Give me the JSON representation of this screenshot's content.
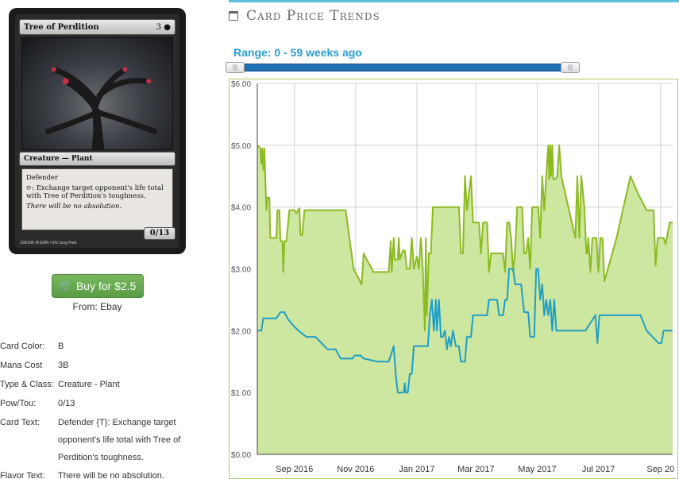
{
  "card": {
    "name": "Tree of Perdition",
    "cost_text": "3",
    "type_line": "Creature — Plant",
    "rules_text_1": "Defender",
    "rules_text_2": ": Exchange target opponent's life total with Tree of Perdition's toughness.",
    "flavor": "There will be no absolution.",
    "pt": "0/13",
    "footer": "109/205 M EMN • EN Jung Park"
  },
  "buy": {
    "label": "Buy for $2.5",
    "from_label": "From: Ebay"
  },
  "details": [
    {
      "label": "Card Color:",
      "value": "B"
    },
    {
      "label": "Mana Cost",
      "value": "3B"
    },
    {
      "label": "Type & Class:",
      "value": "Creature - Plant"
    },
    {
      "label": "Pow/Tou:",
      "value": "0/13"
    },
    {
      "label": "Card Text:",
      "value": "Defender {T}: Exchange target opponent's life total with Tree of Perdition's toughness."
    },
    {
      "label": "Flavor Text:",
      "value": "There will be no absolution."
    }
  ],
  "trends": {
    "title": "Card Price Trends",
    "range_label": "Range: 0 - 59 weeks ago"
  },
  "colors": {
    "accent_blue": "#2a9fd6",
    "green_fill": "#cde6a0",
    "green_line": "#8cba22",
    "blue_line": "#1f9fc7",
    "buy_green": "#5cb85c"
  },
  "chart_data": {
    "type": "line",
    "xlabel": "",
    "ylabel": "",
    "y_ticks": [
      "$0.00",
      "$1.00",
      "$2.00",
      "$3.00",
      "$4.00",
      "$5.00",
      "$6.00"
    ],
    "ylim": [
      0,
      6
    ],
    "x_ticks": [
      {
        "label": "Sep 2016",
        "date": "2016-09-01"
      },
      {
        "label": "Nov 2016",
        "date": "2016-11-01"
      },
      {
        "label": "Jan 2017",
        "date": "2017-01-01"
      },
      {
        "label": "Mar 2017",
        "date": "2017-03-01"
      },
      {
        "label": "May 2017",
        "date": "2017-05-01"
      },
      {
        "label": "Jul 2017",
        "date": "2017-07-01"
      },
      {
        "label": "Sep 20",
        "date": "2017-09-01"
      }
    ],
    "xlim": [
      "2016-07-26",
      "2017-09-13"
    ],
    "grid": true,
    "series": [
      {
        "style": "area",
        "points": [
          [
            "2016-07-26",
            5.0
          ],
          [
            "2016-07-29",
            4.95
          ],
          [
            "2016-07-30",
            4.7
          ],
          [
            "2016-07-31",
            4.95
          ],
          [
            "2016-08-01",
            4.6
          ],
          [
            "2016-08-02",
            4.95
          ],
          [
            "2016-08-04",
            3.95
          ],
          [
            "2016-08-05",
            4.15
          ],
          [
            "2016-08-07",
            4.15
          ],
          [
            "2016-08-08",
            3.5
          ],
          [
            "2016-08-14",
            3.5
          ],
          [
            "2016-08-15",
            3.95
          ],
          [
            "2016-08-17",
            3.95
          ],
          [
            "2016-08-18",
            3.45
          ],
          [
            "2016-08-20",
            3.45
          ],
          [
            "2016-08-21",
            2.95
          ],
          [
            "2016-08-22",
            3.45
          ],
          [
            "2016-08-24",
            3.45
          ],
          [
            "2016-08-27",
            3.95
          ],
          [
            "2016-09-01",
            3.95
          ],
          [
            "2016-09-03",
            3.9
          ],
          [
            "2016-09-06",
            3.98
          ],
          [
            "2016-09-07",
            3.55
          ],
          [
            "2016-09-09",
            3.55
          ],
          [
            "2016-09-11",
            3.95
          ],
          [
            "2016-09-30",
            3.95
          ],
          [
            "2016-10-03",
            3.95
          ],
          [
            "2016-10-22",
            3.95
          ],
          [
            "2016-10-30",
            3.0
          ],
          [
            "2016-11-07",
            2.75
          ],
          [
            "2016-11-09",
            3.25
          ],
          [
            "2016-11-12",
            3.15
          ],
          [
            "2016-11-19",
            2.95
          ],
          [
            "2016-12-04",
            2.95
          ],
          [
            "2016-12-06",
            3.45
          ],
          [
            "2016-12-07",
            2.95
          ],
          [
            "2016-12-09",
            3.5
          ],
          [
            "2016-12-10",
            3.15
          ],
          [
            "2016-12-13",
            3.15
          ],
          [
            "2016-12-14",
            3.5
          ],
          [
            "2016-12-15",
            3.15
          ],
          [
            "2016-12-18",
            3.3
          ],
          [
            "2016-12-20",
            3.3
          ],
          [
            "2016-12-22",
            3.0
          ],
          [
            "2016-12-25",
            3.0
          ],
          [
            "2016-12-27",
            3.5
          ],
          [
            "2016-12-29",
            3.0
          ],
          [
            "2017-01-01",
            3.2
          ],
          [
            "2017-01-03",
            3.0
          ],
          [
            "2017-01-05",
            3.5
          ],
          [
            "2017-01-07",
            3.0
          ],
          [
            "2017-01-09",
            2.0
          ],
          [
            "2017-01-10",
            3.5
          ],
          [
            "2017-01-11",
            2.25
          ],
          [
            "2017-01-13",
            3.25
          ],
          [
            "2017-01-15",
            3.25
          ],
          [
            "2017-01-17",
            4.0
          ],
          [
            "2017-01-27",
            4.0
          ],
          [
            "2017-01-31",
            4.0
          ],
          [
            "2017-02-12",
            4.0
          ],
          [
            "2017-02-14",
            3.25
          ],
          [
            "2017-02-16",
            3.25
          ],
          [
            "2017-02-18",
            4.5
          ],
          [
            "2017-02-20",
            3.95
          ],
          [
            "2017-02-24",
            4.5
          ],
          [
            "2017-02-26",
            3.75
          ],
          [
            "2017-03-04",
            3.75
          ],
          [
            "2017-03-06",
            3.25
          ],
          [
            "2017-03-08",
            3.75
          ],
          [
            "2017-03-12",
            3.75
          ],
          [
            "2017-03-14",
            2.95
          ],
          [
            "2017-03-16",
            3.25
          ],
          [
            "2017-03-28",
            3.25
          ],
          [
            "2017-03-30",
            2.95
          ],
          [
            "2017-04-01",
            3.75
          ],
          [
            "2017-04-03",
            3.75
          ],
          [
            "2017-04-05",
            3.5
          ],
          [
            "2017-04-07",
            2.95
          ],
          [
            "2017-04-09",
            3.3
          ],
          [
            "2017-04-11",
            4.0
          ],
          [
            "2017-04-16",
            4.0
          ],
          [
            "2017-04-18",
            3.25
          ],
          [
            "2017-04-20",
            3.25
          ],
          [
            "2017-04-22",
            3.5
          ],
          [
            "2017-04-24",
            3.0
          ],
          [
            "2017-04-26",
            4.0
          ],
          [
            "2017-05-02",
            4.0
          ],
          [
            "2017-05-04",
            3.5
          ],
          [
            "2017-05-06",
            4.5
          ],
          [
            "2017-05-08",
            3.95
          ],
          [
            "2017-05-10",
            4.5
          ],
          [
            "2017-05-12",
            5.0
          ],
          [
            "2017-05-13",
            4.45
          ],
          [
            "2017-05-14",
            5.0
          ],
          [
            "2017-05-15",
            4.5
          ],
          [
            "2017-05-16",
            5.0
          ],
          [
            "2017-05-17",
            4.45
          ],
          [
            "2017-05-19",
            4.45
          ],
          [
            "2017-05-21",
            4.5
          ],
          [
            "2017-05-23",
            5.0
          ],
          [
            "2017-05-25",
            4.5
          ],
          [
            "2017-06-08",
            3.5
          ],
          [
            "2017-06-10",
            4.5
          ],
          [
            "2017-06-12",
            3.5
          ],
          [
            "2017-06-14",
            4.5
          ],
          [
            "2017-06-17",
            4.0
          ],
          [
            "2017-06-19",
            3.25
          ],
          [
            "2017-06-20",
            3.25
          ],
          [
            "2017-06-21",
            3.5
          ],
          [
            "2017-06-23",
            2.95
          ],
          [
            "2017-06-25",
            3.5
          ],
          [
            "2017-06-29",
            3.5
          ],
          [
            "2017-07-01",
            2.95
          ],
          [
            "2017-07-03",
            3.5
          ],
          [
            "2017-07-05",
            3.5
          ],
          [
            "2017-07-07",
            2.8
          ],
          [
            "2017-07-19",
            3.5
          ],
          [
            "2017-08-02",
            4.5
          ],
          [
            "2017-08-10",
            4.2
          ],
          [
            "2017-08-18",
            3.95
          ],
          [
            "2017-08-25",
            3.95
          ],
          [
            "2017-08-27",
            3.05
          ],
          [
            "2017-08-29",
            3.5
          ],
          [
            "2017-09-04",
            3.5
          ],
          [
            "2017-09-06",
            3.4
          ],
          [
            "2017-09-10",
            3.75
          ],
          [
            "2017-09-13",
            3.75
          ]
        ]
      },
      {
        "style": "line",
        "points": [
          [
            "2016-07-26",
            2.0
          ],
          [
            "2016-07-30",
            2.0
          ],
          [
            "2016-08-01",
            2.2
          ],
          [
            "2016-08-14",
            2.2
          ],
          [
            "2016-08-18",
            2.3
          ],
          [
            "2016-08-22",
            2.3
          ],
          [
            "2016-08-25",
            2.2
          ],
          [
            "2016-08-30",
            2.1
          ],
          [
            "2016-09-05",
            2.0
          ],
          [
            "2016-09-13",
            1.9
          ],
          [
            "2016-09-22",
            1.9
          ],
          [
            "2016-10-04",
            1.7
          ],
          [
            "2016-10-12",
            1.7
          ],
          [
            "2016-10-17",
            1.55
          ],
          [
            "2016-10-29",
            1.55
          ],
          [
            "2016-10-31",
            1.6
          ],
          [
            "2016-11-06",
            1.6
          ],
          [
            "2016-11-09",
            1.55
          ],
          [
            "2016-11-23",
            1.5
          ],
          [
            "2016-12-04",
            1.5
          ],
          [
            "2016-12-09",
            1.75
          ],
          [
            "2016-12-11",
            1.3
          ],
          [
            "2016-12-13",
            1.0
          ],
          [
            "2016-12-19",
            1.0
          ],
          [
            "2016-12-20",
            1.15
          ],
          [
            "2016-12-21",
            1.0
          ],
          [
            "2016-12-23",
            1.0
          ],
          [
            "2016-12-25",
            1.3
          ],
          [
            "2016-12-27",
            1.3
          ],
          [
            "2016-12-29",
            1.75
          ],
          [
            "2017-01-12",
            1.75
          ],
          [
            "2017-01-14",
            2.25
          ],
          [
            "2017-01-16",
            2.5
          ],
          [
            "2017-01-18",
            2.0
          ],
          [
            "2017-01-20",
            2.5
          ],
          [
            "2017-01-21",
            2.0
          ],
          [
            "2017-01-23",
            2.5
          ],
          [
            "2017-01-25",
            1.9
          ],
          [
            "2017-01-27",
            1.9
          ],
          [
            "2017-01-29",
            2.0
          ],
          [
            "2017-01-31",
            1.7
          ],
          [
            "2017-02-02",
            1.9
          ],
          [
            "2017-02-04",
            1.75
          ],
          [
            "2017-02-06",
            2.0
          ],
          [
            "2017-02-09",
            1.75
          ],
          [
            "2017-02-12",
            1.75
          ],
          [
            "2017-02-14",
            1.5
          ],
          [
            "2017-02-18",
            1.5
          ],
          [
            "2017-02-20",
            1.9
          ],
          [
            "2017-02-24",
            1.9
          ],
          [
            "2017-02-26",
            2.25
          ],
          [
            "2017-03-12",
            2.25
          ],
          [
            "2017-03-14",
            2.5
          ],
          [
            "2017-03-22",
            2.5
          ],
          [
            "2017-03-24",
            2.25
          ],
          [
            "2017-03-28",
            2.25
          ],
          [
            "2017-03-30",
            2.5
          ],
          [
            "2017-04-01",
            2.5
          ],
          [
            "2017-04-03",
            3.0
          ],
          [
            "2017-04-07",
            3.0
          ],
          [
            "2017-04-09",
            2.75
          ],
          [
            "2017-04-15",
            2.75
          ],
          [
            "2017-04-18",
            2.3
          ],
          [
            "2017-04-22",
            2.3
          ],
          [
            "2017-04-24",
            1.9
          ],
          [
            "2017-04-28",
            1.9
          ],
          [
            "2017-04-30",
            3.0
          ],
          [
            "2017-05-02",
            3.0
          ],
          [
            "2017-05-04",
            2.5
          ],
          [
            "2017-05-06",
            2.75
          ],
          [
            "2017-05-08",
            2.25
          ],
          [
            "2017-05-10",
            2.5
          ],
          [
            "2017-05-12",
            2.25
          ],
          [
            "2017-05-14",
            2.5
          ],
          [
            "2017-05-16",
            2.0
          ],
          [
            "2017-05-18",
            2.5
          ],
          [
            "2017-05-20",
            2.0
          ],
          [
            "2017-06-18",
            2.0
          ],
          [
            "2017-06-28",
            2.25
          ],
          [
            "2017-06-30",
            1.8
          ],
          [
            "2017-07-02",
            2.25
          ],
          [
            "2017-08-12",
            2.25
          ],
          [
            "2017-08-18",
            2.0
          ],
          [
            "2017-08-30",
            1.8
          ],
          [
            "2017-09-02",
            1.8
          ],
          [
            "2017-09-04",
            2.0
          ],
          [
            "2017-09-13",
            2.0
          ]
        ]
      }
    ]
  }
}
